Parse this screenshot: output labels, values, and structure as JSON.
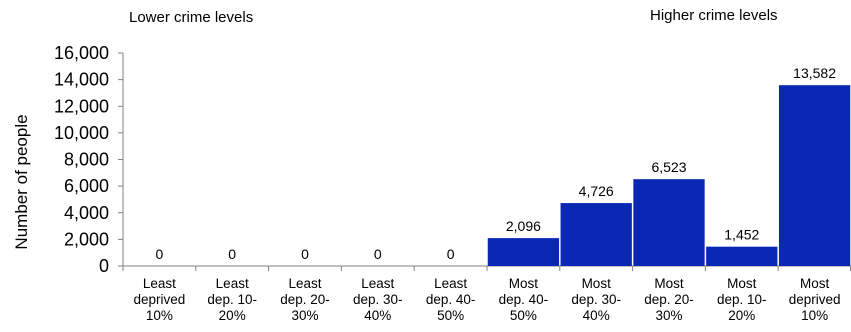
{
  "annotations": {
    "left": "Lower crime levels",
    "right": "Higher crime levels"
  },
  "chart_data": {
    "type": "bar",
    "title": "",
    "xlabel": "",
    "ylabel": "Number of people",
    "ylim": [
      0,
      16000
    ],
    "yticks": [
      0,
      2000,
      4000,
      6000,
      8000,
      10000,
      12000,
      14000,
      16000
    ],
    "ytick_labels": [
      "0",
      "2,000",
      "4,000",
      "6,000",
      "8,000",
      "10,000",
      "12,000",
      "14,000",
      "16,000"
    ],
    "grid": false,
    "categories": [
      [
        "Least",
        "deprived",
        "10%"
      ],
      [
        "Least",
        "dep. 10-",
        "20%"
      ],
      [
        "Least",
        "dep. 20-",
        "30%"
      ],
      [
        "Least",
        "dep. 30-",
        "40%"
      ],
      [
        "Least",
        "dep. 40-",
        "50%"
      ],
      [
        "Most",
        "dep. 40-",
        "50%"
      ],
      [
        "Most",
        "dep. 30-",
        "40%"
      ],
      [
        "Most",
        "dep. 20-",
        "30%"
      ],
      [
        "Most",
        "dep. 10-",
        "20%"
      ],
      [
        "Most",
        "deprived",
        "10%"
      ]
    ],
    "values": [
      0,
      0,
      0,
      0,
      0,
      2096,
      4726,
      6523,
      1452,
      13582
    ],
    "value_labels": [
      "0",
      "0",
      "0",
      "0",
      "0",
      "2,096",
      "4,726",
      "6,523",
      "1,452",
      "13,582"
    ],
    "bar_color": "#0a28b4"
  }
}
